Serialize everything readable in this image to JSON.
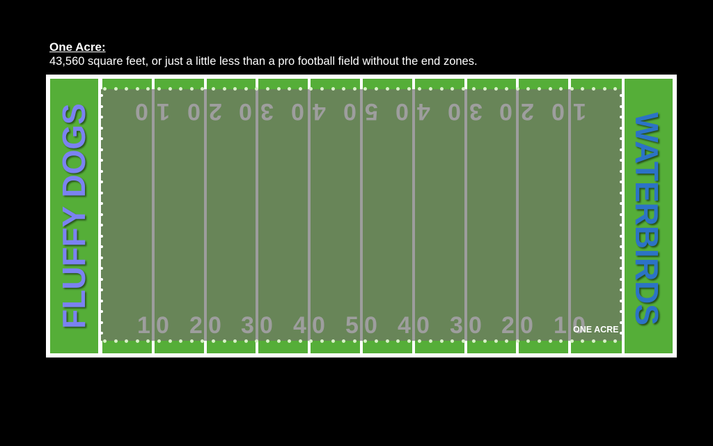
{
  "header": {
    "title": "One Acre:",
    "description": "43,560 square feet, or just a little less than a pro football field without the end zones."
  },
  "field": {
    "left_team": "FLUFFY DOGS",
    "right_team": "WATERBIRDS",
    "acre_label": "ONE ACRE",
    "yard_numbers": [
      "10",
      "20",
      "30",
      "40",
      "50",
      "40",
      "30",
      "20",
      "10"
    ],
    "colors": {
      "background": "#000000",
      "turf": "#55ae38",
      "acre_overlay": "#688558",
      "yard_number": "#9e9e9e",
      "left_team_text": "#7b82f2",
      "right_team_text": "#2c73c6",
      "field_lines": "#ffffff"
    }
  }
}
